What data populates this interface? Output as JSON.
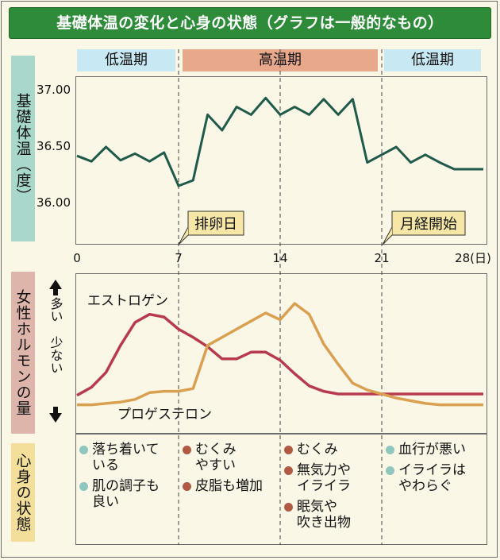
{
  "title": "基礎体温の変化と心身の状態（グラフは一般的なもの）",
  "labels": {
    "bbt": "基礎体温︵度︶",
    "hormone": "女性ホルモンの量",
    "state": "心身の状態",
    "many": "多い",
    "few": "少ない",
    "ovulation": "排卵日",
    "menstruation": "月経開始"
  },
  "phases": [
    "低温期",
    "高温期",
    "低温期"
  ],
  "chart_data": [
    {
      "type": "line",
      "name": "basal_body_temperature",
      "xlim": [
        0,
        28
      ],
      "ylim": [
        35.6,
        37.0
      ],
      "x_ticks": [
        "0",
        "7",
        "14",
        "21",
        "28(日)"
      ],
      "y_ticks": [
        "37.00",
        "36.50",
        "36.00"
      ],
      "grid": false,
      "x": [
        0,
        1,
        2,
        3,
        4,
        5,
        6,
        7,
        8,
        9,
        10,
        11,
        12,
        13,
        14,
        15,
        16,
        17,
        18,
        19,
        20,
        21,
        22,
        23,
        24,
        25,
        26,
        27,
        28
      ],
      "y": [
        36.42,
        36.37,
        36.5,
        36.38,
        36.44,
        36.37,
        36.45,
        36.15,
        36.2,
        36.79,
        36.65,
        36.86,
        36.79,
        36.94,
        36.79,
        36.86,
        36.79,
        36.93,
        36.79,
        36.93,
        36.36,
        36.43,
        36.5,
        36.36,
        36.43,
        36.36,
        36.3,
        36.3,
        36.3
      ]
    },
    {
      "type": "line",
      "name": "hormone_levels",
      "xlim": [
        0,
        28
      ],
      "y_direction": "上:多い / 下:少ない",
      "series": [
        {
          "name": "エストロゲン",
          "color": "#b83a4f",
          "x": [
            0,
            1,
            2,
            3,
            4,
            5,
            6,
            7,
            8,
            9,
            10,
            11,
            12,
            13,
            14,
            15,
            16,
            17,
            18,
            19,
            20,
            21,
            22,
            23,
            24,
            25,
            26,
            27,
            28
          ],
          "y": [
            0.19,
            0.25,
            0.36,
            0.56,
            0.73,
            0.79,
            0.77,
            0.68,
            0.62,
            0.55,
            0.46,
            0.46,
            0.51,
            0.51,
            0.45,
            0.35,
            0.26,
            0.22,
            0.2,
            0.2,
            0.2,
            0.2,
            0.2,
            0.2,
            0.2,
            0.2,
            0.2,
            0.2,
            0.2
          ]
        },
        {
          "name": "プロゲステロン",
          "color": "#d9a052",
          "x": [
            0,
            1,
            2,
            3,
            4,
            5,
            6,
            7,
            8,
            9,
            10,
            11,
            12,
            13,
            14,
            15,
            16,
            17,
            18,
            19,
            20,
            21,
            22,
            23,
            24,
            25,
            26,
            27,
            28
          ],
          "y": [
            0.12,
            0.12,
            0.13,
            0.14,
            0.16,
            0.21,
            0.22,
            0.22,
            0.24,
            0.56,
            0.62,
            0.68,
            0.74,
            0.8,
            0.75,
            0.87,
            0.79,
            0.57,
            0.42,
            0.28,
            0.23,
            0.2,
            0.17,
            0.15,
            0.13,
            0.12,
            0.12,
            0.12,
            0.12
          ]
        }
      ]
    }
  ],
  "states": [
    {
      "items": [
        {
          "type": "calm",
          "color": "#8fc6bd",
          "text": "落ち着いて\nいる"
        },
        {
          "type": "calm",
          "color": "#8fc6bd",
          "text": "肌の調子も\n良い"
        }
      ]
    },
    {
      "items": [
        {
          "type": "bad",
          "color": "#b05a44",
          "text": "むくみ\nやすい"
        },
        {
          "type": "bad",
          "color": "#b05a44",
          "text": "皮脂も増加"
        }
      ]
    },
    {
      "items": [
        {
          "type": "bad",
          "color": "#b05a44",
          "text": "むくみ"
        },
        {
          "type": "bad",
          "color": "#b05a44",
          "text": "無気力や\nイライラ"
        },
        {
          "type": "bad",
          "color": "#b05a44",
          "text": "眠気や\n吹き出物"
        }
      ]
    },
    {
      "items": [
        {
          "type": "mild",
          "color": "#8fc6bd",
          "text": "血行が悪い"
        },
        {
          "type": "mild",
          "color": "#8fc6bd",
          "text": "イライラは\nやわらぐ"
        }
      ]
    }
  ]
}
